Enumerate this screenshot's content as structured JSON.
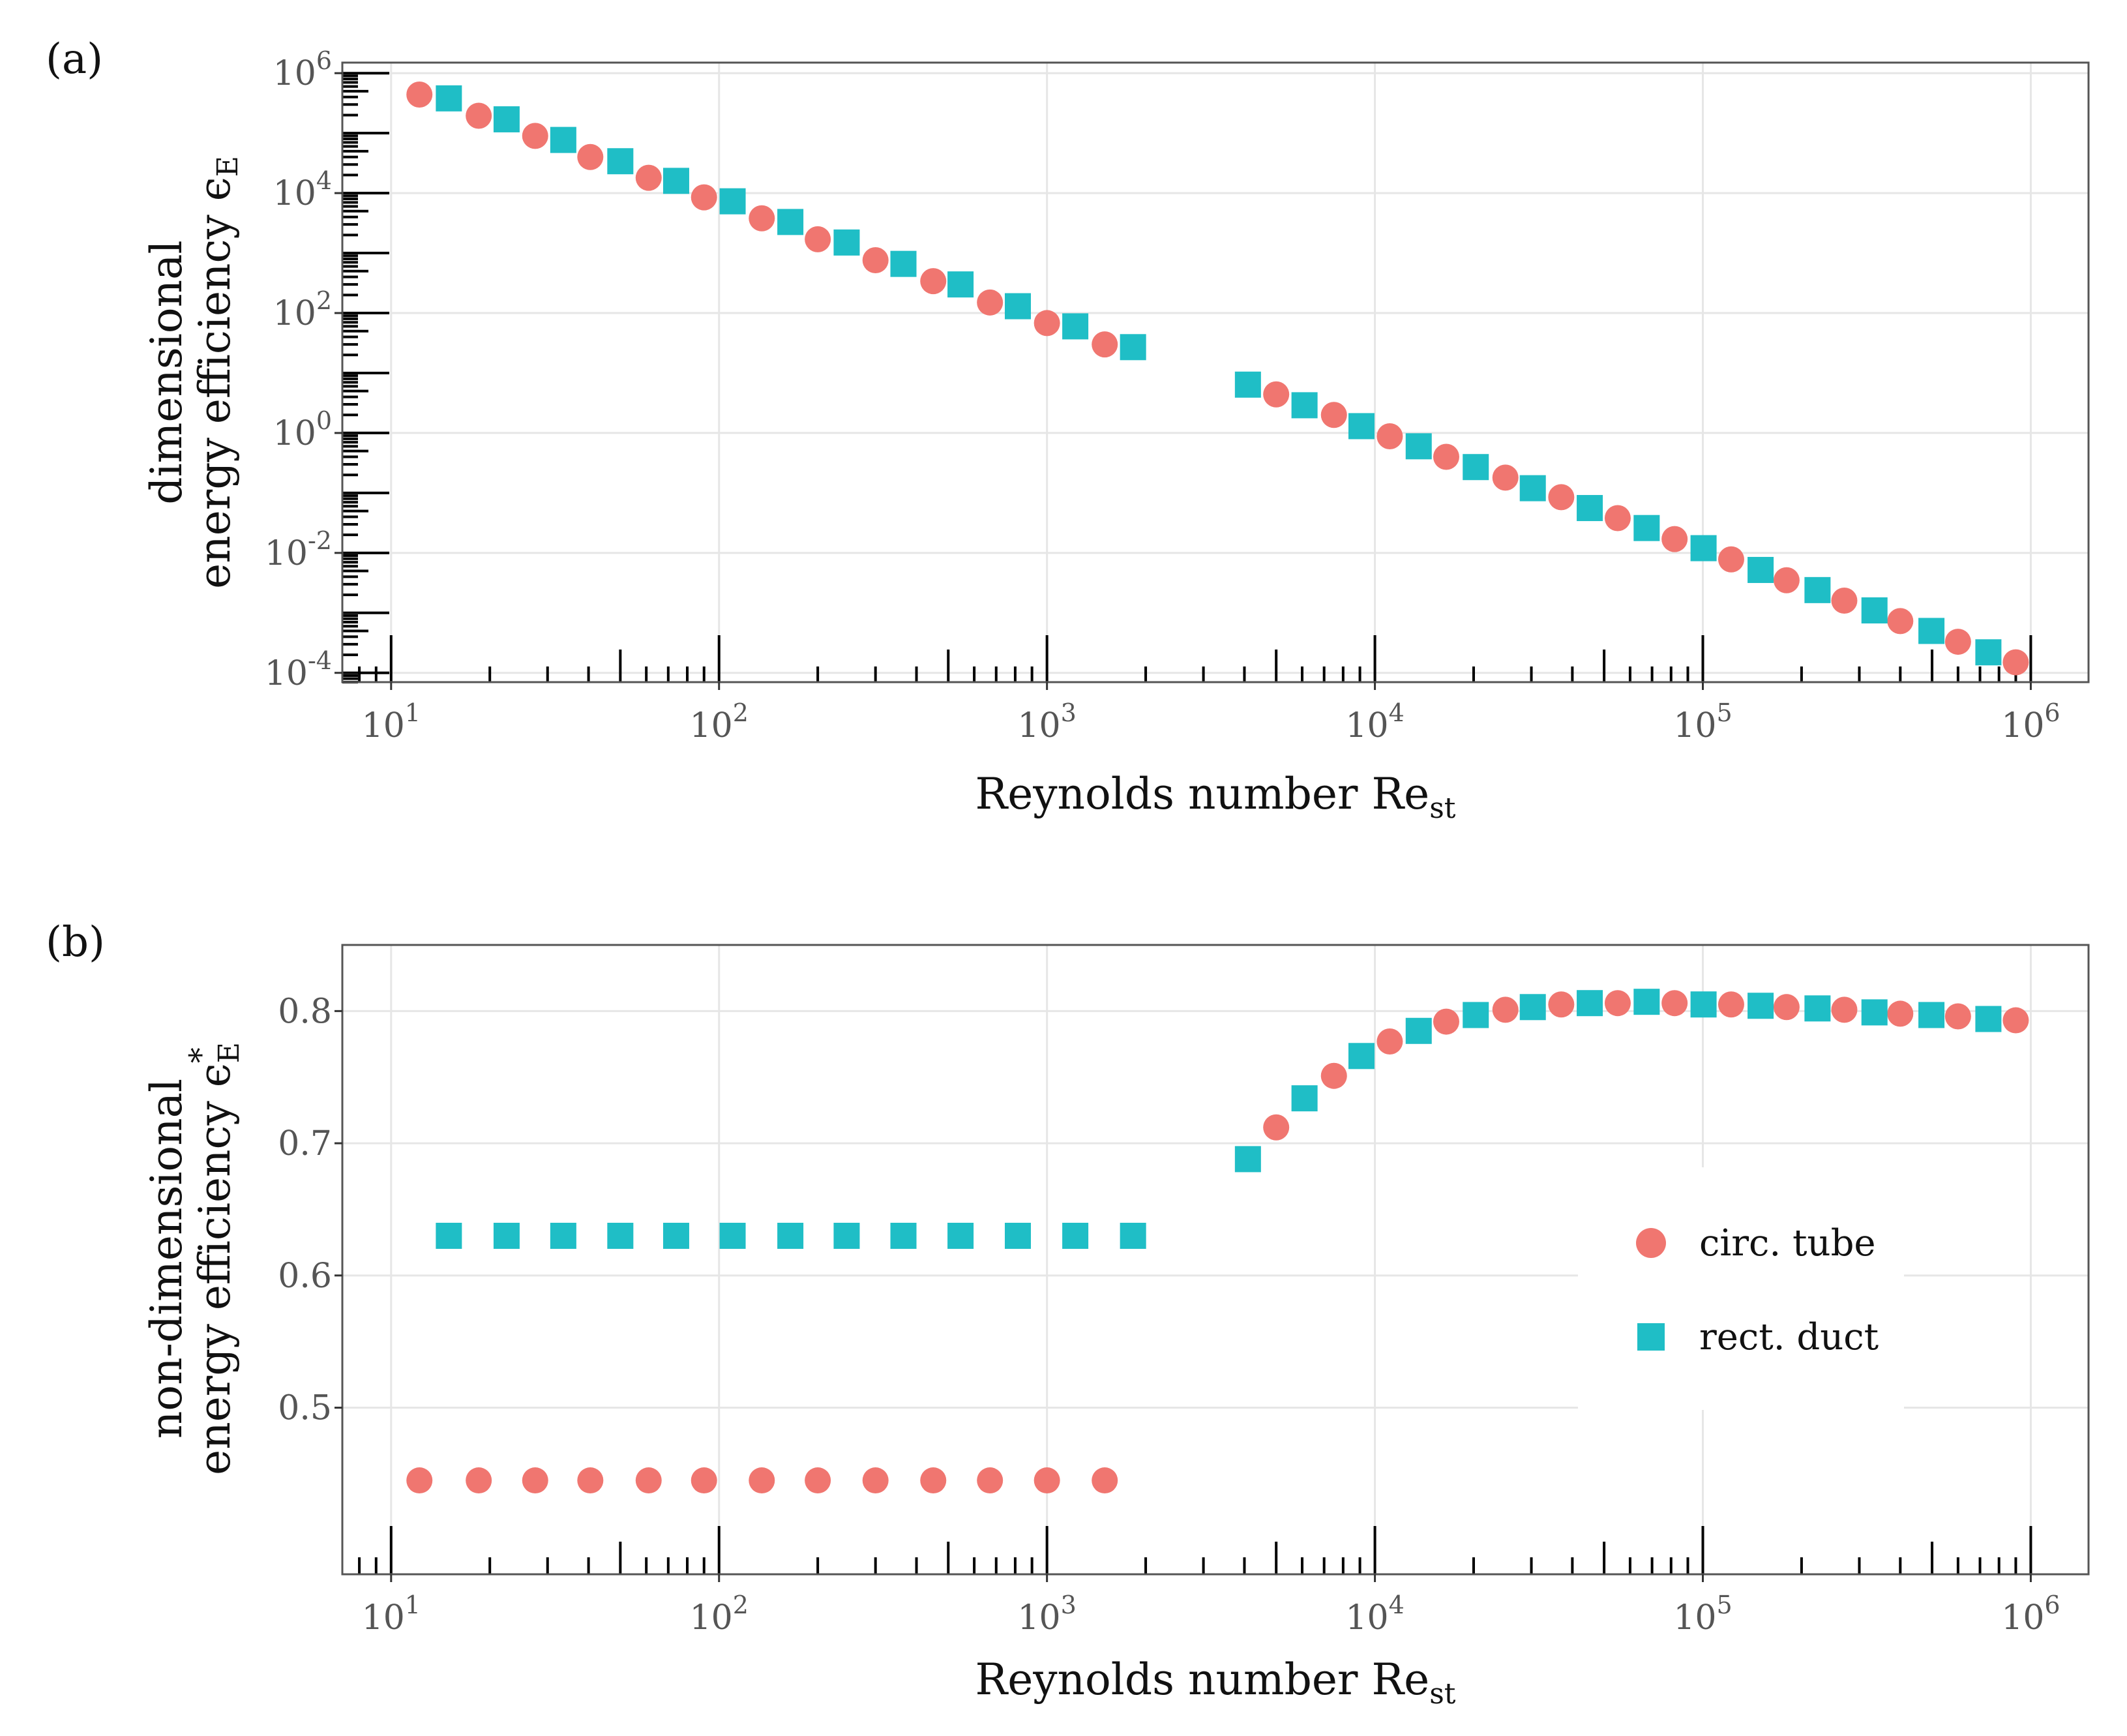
{
  "colors": {
    "circ": "#F07670",
    "rect": "#1FBEC6"
  },
  "legend": {
    "items": [
      {
        "label": "circ. tube",
        "series": "circ",
        "shape": "circle"
      },
      {
        "label": "rect. duct",
        "series": "rect",
        "shape": "square"
      }
    ]
  },
  "panels": [
    {
      "label": "(a)",
      "ylabel_line1": "dimensional",
      "ylabel_line2": "energy efficiency ϵ",
      "ylabel_sub": "E",
      "ylabel_sup": "",
      "xlabel_main": "Reynolds number Re",
      "xlabel_sub": "st"
    },
    {
      "label": "(b)",
      "ylabel_line1": "non-dimensional",
      "ylabel_line2": "energy efficiency ϵ",
      "ylabel_sub": "E",
      "ylabel_sup": "*",
      "xlabel_main": "Reynolds number Re",
      "xlabel_sub": "st"
    }
  ],
  "chart_data": [
    {
      "type": "scatter",
      "panel": "(a)",
      "xscale": "log10",
      "yscale": "log10",
      "xlim": [
        7.1,
        1500000
      ],
      "ylim": [
        7e-05,
        1500000
      ],
      "x_ticks": [
        {
          "value": 10,
          "base": "10",
          "exp": "1"
        },
        {
          "value": 100,
          "base": "10",
          "exp": "2"
        },
        {
          "value": 1000,
          "base": "10",
          "exp": "3"
        },
        {
          "value": 10000,
          "base": "10",
          "exp": "4"
        },
        {
          "value": 100000,
          "base": "10",
          "exp": "5"
        },
        {
          "value": 1000000,
          "base": "10",
          "exp": "6"
        }
      ],
      "y_ticks": [
        {
          "value": 0.0001,
          "base": "10",
          "exp": "-4"
        },
        {
          "value": 0.01,
          "base": "10",
          "exp": "-2"
        },
        {
          "value": 1,
          "base": "10",
          "exp": "0"
        },
        {
          "value": 100,
          "base": "10",
          "exp": "2"
        },
        {
          "value": 10000,
          "base": "10",
          "exp": "4"
        },
        {
          "value": 1000000,
          "base": "10",
          "exp": "6"
        }
      ],
      "series": [
        {
          "name": "circ. tube",
          "key": "circ",
          "x": [
            12.2,
            18.5,
            27.5,
            40.5,
            61,
            90,
            135,
            200,
            300,
            450,
            670,
            1000,
            1500,
            5000,
            7500,
            11100,
            16500,
            25000,
            37000,
            55000,
            82000,
            122000,
            180000,
            270000,
            400000,
            600000,
            900000
          ],
          "y": [
            440000,
            195000,
            90000,
            40000,
            18000,
            8500,
            3800,
            1700,
            760,
            340,
            150,
            68,
            30,
            4.4,
            2.0,
            0.88,
            0.4,
            0.18,
            0.085,
            0.038,
            0.017,
            0.0078,
            0.0035,
            0.0016,
            0.00073,
            0.00033,
            0.00015
          ]
        },
        {
          "name": "rect. duct",
          "key": "rect",
          "x": [
            15,
            22.5,
            33.5,
            50,
            74,
            110,
            165,
            245,
            365,
            545,
            815,
            1220,
            1830,
            4100,
            6100,
            9100,
            13600,
            20300,
            30300,
            45200,
            67400,
            100500,
            150000,
            223700,
            333700,
            497800,
            742500
          ],
          "y": [
            380000,
            170000,
            77000,
            34000,
            16000,
            7300,
            3300,
            1500,
            660,
            300,
            130,
            60,
            27,
            6.4,
            2.9,
            1.3,
            0.6,
            0.27,
            0.12,
            0.056,
            0.026,
            0.012,
            0.0052,
            0.0024,
            0.0011,
            0.0005,
            0.00022
          ]
        }
      ]
    },
    {
      "type": "scatter",
      "panel": "(b)",
      "xscale": "log10",
      "yscale": "linear",
      "xlim": [
        7.1,
        1500000
      ],
      "ylim": [
        0.374,
        0.85
      ],
      "x_ticks": [
        {
          "value": 10,
          "base": "10",
          "exp": "1"
        },
        {
          "value": 100,
          "base": "10",
          "exp": "2"
        },
        {
          "value": 1000,
          "base": "10",
          "exp": "3"
        },
        {
          "value": 10000,
          "base": "10",
          "exp": "4"
        },
        {
          "value": 100000,
          "base": "10",
          "exp": "5"
        },
        {
          "value": 1000000,
          "base": "10",
          "exp": "6"
        }
      ],
      "y_ticks": [
        {
          "value": 0.5,
          "label": "0.5"
        },
        {
          "value": 0.6,
          "label": "0.6"
        },
        {
          "value": 0.7,
          "label": "0.7"
        },
        {
          "value": 0.8,
          "label": "0.8"
        }
      ],
      "series": [
        {
          "name": "circ. tube",
          "key": "circ",
          "x": [
            12.2,
            18.5,
            27.5,
            40.5,
            61,
            90,
            135,
            200,
            300,
            450,
            670,
            1000,
            1500,
            5000,
            7500,
            11100,
            16500,
            25000,
            37000,
            55000,
            82000,
            122000,
            180000,
            270000,
            400000,
            600000,
            900000
          ],
          "y": [
            0.445,
            0.445,
            0.445,
            0.445,
            0.445,
            0.445,
            0.445,
            0.445,
            0.445,
            0.445,
            0.445,
            0.445,
            0.445,
            0.712,
            0.751,
            0.777,
            0.792,
            0.801,
            0.805,
            0.806,
            0.806,
            0.805,
            0.803,
            0.801,
            0.798,
            0.796,
            0.793
          ]
        },
        {
          "name": "rect. duct",
          "key": "rect",
          "x": [
            15,
            22.5,
            33.5,
            50,
            74,
            110,
            165,
            245,
            365,
            545,
            815,
            1220,
            1830,
            4100,
            6100,
            9100,
            13600,
            20300,
            30300,
            45200,
            67400,
            100500,
            150000,
            223700,
            333700,
            497800,
            742500
          ],
          "y": [
            0.63,
            0.63,
            0.63,
            0.63,
            0.63,
            0.63,
            0.63,
            0.63,
            0.63,
            0.63,
            0.63,
            0.63,
            0.63,
            0.688,
            0.734,
            0.766,
            0.785,
            0.797,
            0.803,
            0.806,
            0.807,
            0.805,
            0.804,
            0.802,
            0.799,
            0.797,
            0.794
          ]
        }
      ]
    }
  ]
}
